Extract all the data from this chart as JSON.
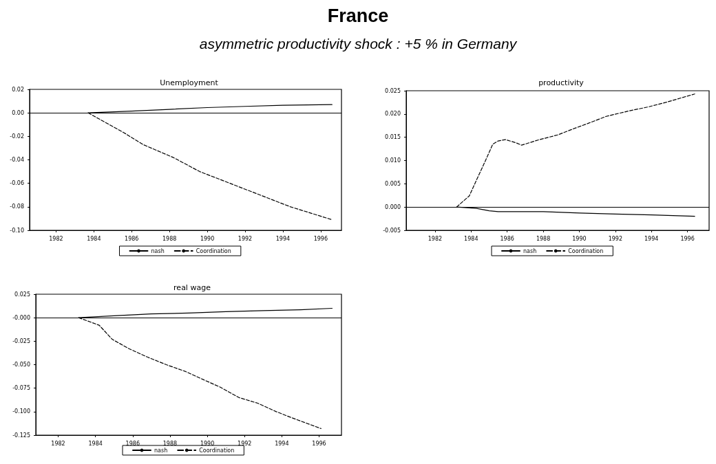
{
  "chart_data": [
    {
      "type": "other",
      "title": "France",
      "subtitle": "asymmetric productivity shock : +5 % in Germany"
    },
    {
      "type": "line",
      "title": "Unemployment",
      "marker": "none",
      "grid": false,
      "legend": "bottom",
      "xlim": [
        1980.6,
        1997.1
      ],
      "xticks": [
        1982,
        1984,
        1986,
        1988,
        1990,
        1992,
        1994,
        1996
      ],
      "ylim": [
        -0.1,
        0.02
      ],
      "yticks": [
        {
          "value": -0.1,
          "label": "-0.10"
        },
        {
          "value": -0.08,
          "label": "-0.08"
        },
        {
          "value": -0.06,
          "label": "-0.06"
        },
        {
          "value": -0.04,
          "label": "-0.04"
        },
        {
          "value": -0.02,
          "label": "-0.02"
        },
        {
          "value": 0,
          "label": "0.00"
        },
        {
          "value": 0.02,
          "label": "0.02"
        }
      ],
      "ref_lines": [
        {
          "axis": "y",
          "value": 0
        }
      ],
      "series": [
        {
          "name": "nash",
          "color": "#000000",
          "line_style": "solid",
          "x": [
            1983.7,
            1986,
            1988,
            1990,
            1992,
            1994,
            1996.6
          ],
          "values": [
            0,
            0.0015,
            0.003,
            0.0045,
            0.0055,
            0.0065,
            0.007
          ]
        },
        {
          "name": "Coordination",
          "color": "#000000",
          "line_style": "dashed",
          "x": [
            1983.7,
            1985.6,
            1986.6,
            1988.2,
            1989.6,
            1991.2,
            1992.8,
            1994.4,
            1996.6
          ],
          "values": [
            0,
            -0.017,
            -0.027,
            -0.038,
            -0.05,
            -0.06,
            -0.07,
            -0.08,
            -0.091
          ]
        }
      ]
    },
    {
      "type": "line",
      "title": "productivity",
      "marker": "none",
      "grid": false,
      "legend": "bottom",
      "xlim": [
        1980.4,
        1997.2
      ],
      "xticks": [
        1982,
        1984,
        1986,
        1988,
        1990,
        1992,
        1994,
        1996
      ],
      "ylim": [
        -0.005,
        0.025
      ],
      "yticks": [
        {
          "value": -0.005,
          "label": "-0.005"
        },
        {
          "value": 0,
          "label": "0.000"
        },
        {
          "value": 0.005,
          "label": "0.005"
        },
        {
          "value": 0.01,
          "label": "0.010"
        },
        {
          "value": 0.015,
          "label": "0.015"
        },
        {
          "value": 0.02,
          "label": "0.020"
        },
        {
          "value": 0.025,
          "label": "0.025"
        }
      ],
      "ref_lines": [
        {
          "axis": "y",
          "value": 0
        }
      ],
      "series": [
        {
          "name": "nash",
          "color": "#000000",
          "line_style": "solid",
          "x": [
            1983.2,
            1984.3,
            1985,
            1985.5,
            1988,
            1990,
            1992,
            1994,
            1996.4
          ],
          "values": [
            0,
            -0.0003,
            -0.0008,
            -0.001,
            -0.001,
            -0.0013,
            -0.0015,
            -0.0017,
            -0.002
          ]
        },
        {
          "name": "Coordination",
          "color": "#000000",
          "line_style": "dashed",
          "x": [
            1983.2,
            1983.4,
            1983.9,
            1984.3,
            1984.8,
            1985.2,
            1985.5,
            1985.9,
            1986.5,
            1986.8,
            1987.8,
            1988.8,
            1989.8,
            1990.5,
            1991.5,
            1992.8,
            1993.8,
            1994.8,
            1996.4
          ],
          "values": [
            0,
            0.0007,
            0.0024,
            0.0058,
            0.01,
            0.0135,
            0.0142,
            0.0145,
            0.0138,
            0.0133,
            0.0145,
            0.0155,
            0.017,
            0.018,
            0.0195,
            0.0207,
            0.0215,
            0.0225,
            0.0243
          ]
        }
      ]
    },
    {
      "type": "line",
      "title": "real wage",
      "marker": "none",
      "grid": false,
      "legend": "bottom",
      "xlim": [
        1980.8,
        1997.2
      ],
      "xticks": [
        1982,
        1984,
        1986,
        1988,
        1990,
        1992,
        1994,
        1996
      ],
      "ylim": [
        -0.125,
        0.025
      ],
      "yticks": [
        {
          "value": -0.125,
          "label": "-0.125"
        },
        {
          "value": -0.1,
          "label": "-0.100"
        },
        {
          "value": -0.075,
          "label": "-0.075"
        },
        {
          "value": -0.05,
          "label": "-0.050"
        },
        {
          "value": -0.025,
          "label": "-0.025"
        },
        {
          "value": 0,
          "label": "-0.000"
        },
        {
          "value": 0.025,
          "label": "0.025"
        }
      ],
      "ref_lines": [
        {
          "axis": "y",
          "value": 0
        }
      ],
      "series": [
        {
          "name": "nash",
          "color": "#000000",
          "line_style": "solid",
          "x": [
            1983.1,
            1985,
            1987,
            1989,
            1991,
            1993,
            1995,
            1996.7
          ],
          "values": [
            0,
            0.002,
            0.004,
            0.005,
            0.0065,
            0.0075,
            0.0085,
            0.01
          ]
        },
        {
          "name": "Coordination",
          "color": "#000000",
          "line_style": "dashed",
          "x": [
            1983.1,
            1984.2,
            1984.9,
            1985.8,
            1986.8,
            1987.8,
            1988.8,
            1989.8,
            1990.7,
            1991.7,
            1992.7,
            1993.7,
            1994.6,
            1996.1
          ],
          "values": [
            0,
            -0.008,
            -0.023,
            -0.033,
            -0.042,
            -0.05,
            -0.057,
            -0.066,
            -0.074,
            -0.085,
            -0.091,
            -0.1,
            -0.107,
            -0.118
          ]
        }
      ]
    }
  ]
}
